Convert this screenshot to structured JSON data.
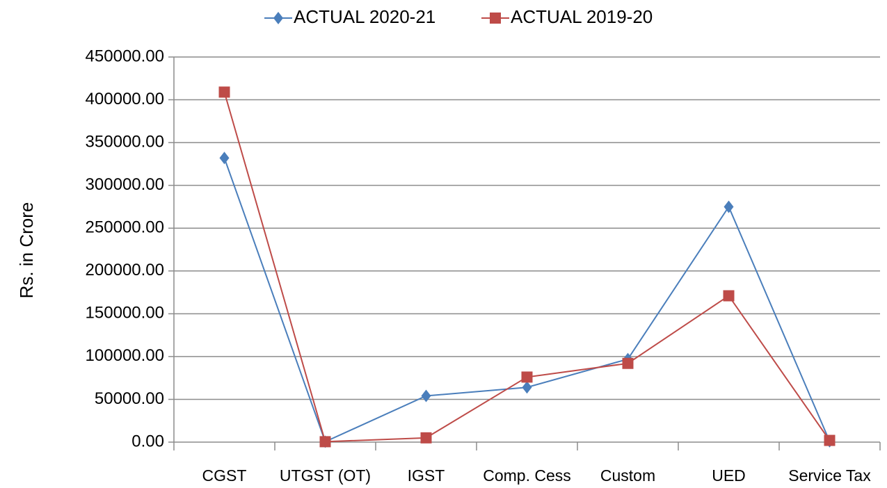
{
  "chart_data": {
    "type": "line",
    "y_label": "Rs. in Crore",
    "categories": [
      "CGST",
      "UTGST (OT)",
      "IGST",
      "Comp. Cess",
      "Custom",
      "UED",
      "Service Tax"
    ],
    "series": [
      {
        "name": "ACTUAL 2020-21",
        "color": "#4a7ebb",
        "marker": "diamond",
        "values": [
          332000,
          500,
          54000,
          64000,
          97000,
          275000,
          1000
        ]
      },
      {
        "name": "ACTUAL 2019-20",
        "color": "#be4b48",
        "marker": "square",
        "values": [
          409000,
          500,
          5000,
          76000,
          92000,
          171000,
          2000
        ]
      }
    ],
    "ylim": [
      0,
      450000
    ],
    "yticks": [
      {
        "value": 0,
        "label": "0.00"
      },
      {
        "value": 50000,
        "label": "50000.00"
      },
      {
        "value": 100000,
        "label": "100000.00"
      },
      {
        "value": 150000,
        "label": "150000.00"
      },
      {
        "value": 200000,
        "label": "200000.00"
      },
      {
        "value": 250000,
        "label": "250000.00"
      },
      {
        "value": 300000,
        "label": "300000.00"
      },
      {
        "value": 350000,
        "label": "350000.00"
      },
      {
        "value": 400000,
        "label": "400000.00"
      },
      {
        "value": 450000,
        "label": "450000.00"
      }
    ],
    "grid": true,
    "legend": "top"
  }
}
